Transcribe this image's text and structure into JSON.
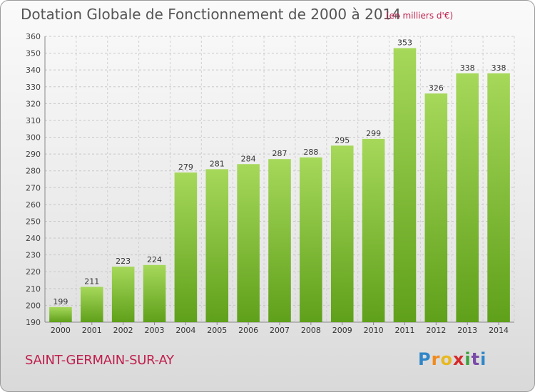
{
  "title": "Dotation Globale de Fonctionnement de 2000 à 2014",
  "unit_note": "(en milliers d'€)",
  "commune": "SAINT-GERMAIN-SUR-AY",
  "logo": {
    "letters": [
      "P",
      "r",
      "o",
      "x",
      "i",
      "t",
      "i"
    ],
    "colors": [
      "#2f86c8",
      "#f08a1c",
      "#e8b820",
      "#d62a2a",
      "#3aa23a",
      "#7a4aa8",
      "#2f86c8"
    ]
  },
  "colors": {
    "bar_top": "#a6d85a",
    "bar_bottom": "#5fa01a",
    "title": "#555555",
    "accent": "#c0204e"
  },
  "chart_data": {
    "type": "bar",
    "title": "Dotation Globale de Fonctionnement de 2000 à 2014",
    "categories": [
      "2000",
      "2001",
      "2002",
      "2003",
      "2004",
      "2005",
      "2006",
      "2007",
      "2008",
      "2009",
      "2010",
      "2011",
      "2012",
      "2013",
      "2014"
    ],
    "values": [
      199,
      211,
      223,
      224,
      279,
      281,
      284,
      287,
      288,
      295,
      299,
      353,
      326,
      338,
      338
    ],
    "ylim": [
      190,
      360
    ],
    "yticks": [
      190,
      200,
      210,
      220,
      230,
      240,
      250,
      260,
      270,
      280,
      290,
      300,
      310,
      320,
      330,
      340,
      350,
      360
    ],
    "grid": true
  }
}
